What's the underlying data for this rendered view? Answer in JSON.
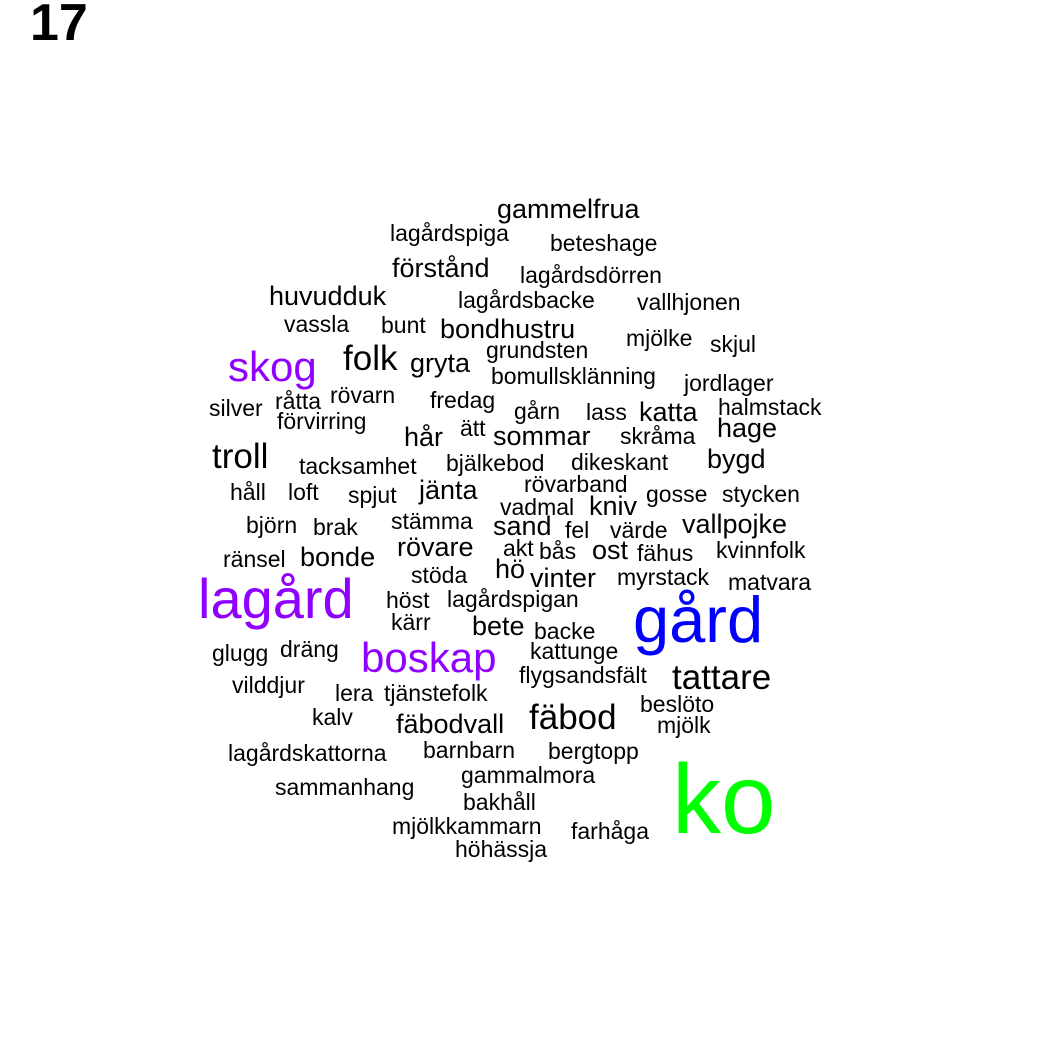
{
  "page_number": "17",
  "colors": {
    "default": "#000000",
    "purple": "#8f00ff",
    "blue": "#0000ff",
    "green": "#00ff00"
  },
  "words": [
    {
      "text": "gammelfrua",
      "tier": 3
    },
    {
      "text": "lagårdspiga",
      "tier": 2
    },
    {
      "text": "beteshage",
      "tier": 2
    },
    {
      "text": "förstånd",
      "tier": 3
    },
    {
      "text": "lagårdsdörren",
      "tier": 2
    },
    {
      "text": "huvudduk",
      "tier": 3
    },
    {
      "text": "lagårdsbacke",
      "tier": 2
    },
    {
      "text": "vallhjonen",
      "tier": 2
    },
    {
      "text": "vassla",
      "tier": 2
    },
    {
      "text": "bunt",
      "tier": 2
    },
    {
      "text": "bondhustru",
      "tier": 3
    },
    {
      "text": "mjölke",
      "tier": 2
    },
    {
      "text": "skjul",
      "tier": 2
    },
    {
      "text": "skog",
      "tier": 5,
      "color": "purple"
    },
    {
      "text": "folk",
      "tier": 4
    },
    {
      "text": "gryta",
      "tier": 3
    },
    {
      "text": "grundsten",
      "tier": 2
    },
    {
      "text": "bomullsklänning",
      "tier": 2
    },
    {
      "text": "jordlager",
      "tier": 2
    },
    {
      "text": "silver",
      "tier": 2
    },
    {
      "text": "råtta",
      "tier": 2
    },
    {
      "text": "rövarn",
      "tier": 2
    },
    {
      "text": "fredag",
      "tier": 2
    },
    {
      "text": "gårn",
      "tier": 2
    },
    {
      "text": "lass",
      "tier": 2
    },
    {
      "text": "katta",
      "tier": 3
    },
    {
      "text": "halmstack",
      "tier": 2
    },
    {
      "text": "förvirring",
      "tier": 2
    },
    {
      "text": "hår",
      "tier": 3
    },
    {
      "text": "ätt",
      "tier": 2
    },
    {
      "text": "sommar",
      "tier": 3
    },
    {
      "text": "skråma",
      "tier": 2
    },
    {
      "text": "hage",
      "tier": 3
    },
    {
      "text": "troll",
      "tier": 4
    },
    {
      "text": "tacksamhet",
      "tier": 2
    },
    {
      "text": "bjälkebod",
      "tier": 2
    },
    {
      "text": "dikeskant",
      "tier": 2
    },
    {
      "text": "bygd",
      "tier": 3
    },
    {
      "text": "rövarband",
      "tier": 2
    },
    {
      "text": "håll",
      "tier": 2
    },
    {
      "text": "loft",
      "tier": 2
    },
    {
      "text": "spjut",
      "tier": 2
    },
    {
      "text": "jänta",
      "tier": 3
    },
    {
      "text": "gosse",
      "tier": 2
    },
    {
      "text": "stycken",
      "tier": 2
    },
    {
      "text": "vadmal",
      "tier": 2
    },
    {
      "text": "kniv",
      "tier": 3
    },
    {
      "text": "björn",
      "tier": 2
    },
    {
      "text": "brak",
      "tier": 2
    },
    {
      "text": "stämma",
      "tier": 2
    },
    {
      "text": "sand",
      "tier": 3
    },
    {
      "text": "fel",
      "tier": 2
    },
    {
      "text": "värde",
      "tier": 2
    },
    {
      "text": "vallpojke",
      "tier": 3
    },
    {
      "text": "ränsel",
      "tier": 2
    },
    {
      "text": "bonde",
      "tier": 3
    },
    {
      "text": "rövare",
      "tier": 3
    },
    {
      "text": "akt",
      "tier": 2
    },
    {
      "text": "bås",
      "tier": 2
    },
    {
      "text": "ost",
      "tier": 3
    },
    {
      "text": "fähus",
      "tier": 2
    },
    {
      "text": "kvinnfolk",
      "tier": 2
    },
    {
      "text": "lagård",
      "tier": 6,
      "color": "purple"
    },
    {
      "text": "stöda",
      "tier": 2
    },
    {
      "text": "hö",
      "tier": 3
    },
    {
      "text": "vinter",
      "tier": 3
    },
    {
      "text": "myrstack",
      "tier": 2
    },
    {
      "text": "matvara",
      "tier": 2
    },
    {
      "text": "höst",
      "tier": 2
    },
    {
      "text": "lagårdspigan",
      "tier": 2
    },
    {
      "text": "gård",
      "tier": 7,
      "color": "blue"
    },
    {
      "text": "kärr",
      "tier": 2
    },
    {
      "text": "bete",
      "tier": 3
    },
    {
      "text": "backe",
      "tier": 2
    },
    {
      "text": "glugg",
      "tier": 2
    },
    {
      "text": "dräng",
      "tier": 2
    },
    {
      "text": "boskap",
      "tier": 5,
      "color": "purple"
    },
    {
      "text": "kattunge",
      "tier": 2
    },
    {
      "text": "tattare",
      "tier": 4
    },
    {
      "text": "flygsandsfält",
      "tier": 2
    },
    {
      "text": "vilddjur",
      "tier": 2
    },
    {
      "text": "lera",
      "tier": 2
    },
    {
      "text": "tjänstefolk",
      "tier": 2
    },
    {
      "text": "beslöto",
      "tier": 2
    },
    {
      "text": "fäbod",
      "tier": 4
    },
    {
      "text": "kalv",
      "tier": 2
    },
    {
      "text": "fäbodvall",
      "tier": 3
    },
    {
      "text": "mjölk",
      "tier": 2
    },
    {
      "text": "lagårdskattorna",
      "tier": 2
    },
    {
      "text": "barnbarn",
      "tier": 2
    },
    {
      "text": "bergtopp",
      "tier": 2
    },
    {
      "text": "gammalmora",
      "tier": 2
    },
    {
      "text": "sammanhang",
      "tier": 2
    },
    {
      "text": "bakhåll",
      "tier": 2
    },
    {
      "text": "ko",
      "tier": 8,
      "color": "green"
    },
    {
      "text": "mjölkkammarn",
      "tier": 2
    },
    {
      "text": "farhåga",
      "tier": 2
    },
    {
      "text": "höhässja",
      "tier": 2
    }
  ]
}
